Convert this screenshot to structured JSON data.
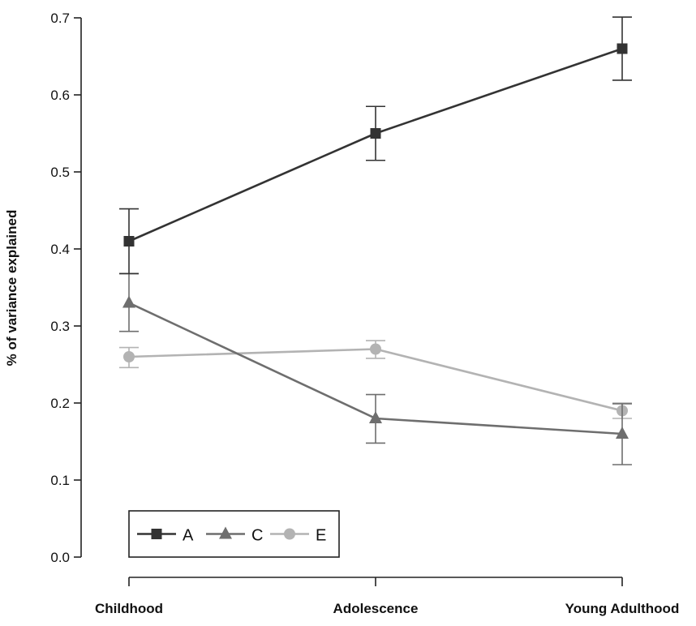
{
  "chart_data": {
    "type": "line",
    "title": "",
    "xlabel": "",
    "ylabel": "% of variance explained",
    "categories": [
      "Childhood",
      "Adolescence",
      "Young Adulthood"
    ],
    "ylim": [
      0.0,
      0.7
    ],
    "yticks": [
      "0.0",
      "0.1",
      "0.2",
      "0.3",
      "0.4",
      "0.5",
      "0.6",
      "0.7"
    ],
    "grid": false,
    "legend_position": "bottom-left",
    "series": [
      {
        "name": "A",
        "marker": "square",
        "color": "#333333",
        "values": [
          0.41,
          0.55,
          0.66
        ],
        "error_low": [
          0.368,
          0.515,
          0.619
        ],
        "error_high": [
          0.452,
          0.585,
          0.701
        ]
      },
      {
        "name": "C",
        "marker": "triangle",
        "color": "#6e6e6e",
        "values": [
          0.33,
          0.18,
          0.16
        ],
        "error_low": [
          0.293,
          0.148,
          0.12
        ],
        "error_high": [
          0.368,
          0.211,
          0.199
        ]
      },
      {
        "name": "E",
        "marker": "circle",
        "color": "#b3b3b3",
        "values": [
          0.26,
          0.27,
          0.19
        ],
        "error_low": [
          0.246,
          0.258,
          0.18
        ],
        "error_high": [
          0.272,
          0.281,
          0.2
        ]
      }
    ]
  }
}
